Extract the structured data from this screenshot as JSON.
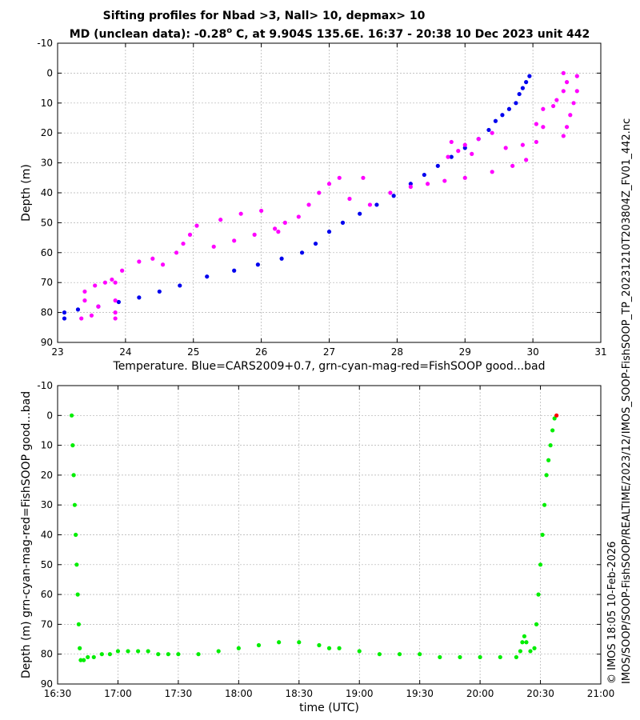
{
  "title_line1": "Sifting profiles for Nbad >3, Nall> 10, depmax> 10",
  "title_line2_prefix": "MD (unclean data): -0.28",
  "title_line2_degree": "o",
  "title_line2_suffix": " C, at 9.904S 135.6E. 16:37 - 20:38 10 Dec 2023 unit 442",
  "right_label_top": "IMOS_SOOP-FishSOOP_TP_20231210T203804Z_FV01_442.nc",
  "right_label_bottom_1": "© IMOS 18:05 10-Feb-2026",
  "right_label_bottom_2": "IMOS/SOOP/SOOP-FishSOOP/REALTIME/2023/12/",
  "colors": {
    "cars": "#0000ee",
    "mag": "#ff00ff",
    "green": "#00ee00",
    "red": "#ff0000"
  },
  "chart_data": [
    {
      "type": "scatter",
      "xlabel": "Temperature. Blue=CARS2009+0.7, grn-cyan-mag-red=FishSOOP good...bad",
      "ylabel": "Depth (m)",
      "xlim": [
        23,
        31
      ],
      "ylim": [
        -10,
        90
      ],
      "y_reversed": true,
      "grid": true,
      "xticks": [
        "23",
        "24",
        "25",
        "26",
        "27",
        "28",
        "29",
        "30",
        "31"
      ],
      "yticks": [
        "-10",
        "0",
        "10",
        "20",
        "30",
        "40",
        "50",
        "60",
        "70",
        "80",
        "90"
      ],
      "series": [
        {
          "color": "blue",
          "points": [
            [
              29.95,
              1
            ],
            [
              29.9,
              3
            ],
            [
              29.85,
              5
            ],
            [
              29.8,
              7
            ],
            [
              29.75,
              10
            ],
            [
              29.65,
              12
            ],
            [
              29.55,
              14
            ],
            [
              29.45,
              16
            ],
            [
              29.35,
              19
            ],
            [
              29.2,
              22
            ],
            [
              29.0,
              25
            ],
            [
              28.8,
              28
            ],
            [
              28.6,
              31
            ],
            [
              28.4,
              34
            ],
            [
              28.2,
              37
            ],
            [
              27.95,
              41
            ],
            [
              27.7,
              44
            ],
            [
              27.45,
              47
            ],
            [
              27.2,
              50
            ],
            [
              27.0,
              53
            ],
            [
              26.8,
              57
            ],
            [
              26.6,
              60
            ],
            [
              26.3,
              62
            ],
            [
              25.95,
              64
            ],
            [
              25.6,
              66
            ],
            [
              25.2,
              68
            ],
            [
              24.8,
              71
            ],
            [
              24.5,
              73
            ],
            [
              24.2,
              75
            ],
            [
              23.9,
              76.5
            ],
            [
              23.6,
              78
            ],
            [
              23.3,
              79
            ],
            [
              23.1,
              80
            ],
            [
              23.1,
              82
            ]
          ]
        },
        {
          "color": "magenta",
          "points": [
            [
              30.45,
              0
            ],
            [
              30.5,
              3
            ],
            [
              30.45,
              6
            ],
            [
              30.35,
              9
            ],
            [
              30.3,
              11
            ],
            [
              30.15,
              12
            ],
            [
              30.05,
              17
            ],
            [
              30.15,
              18
            ],
            [
              30.05,
              23
            ],
            [
              30.45,
              21
            ],
            [
              30.5,
              18
            ],
            [
              30.55,
              14
            ],
            [
              30.6,
              10
            ],
            [
              30.65,
              6
            ],
            [
              30.65,
              1
            ],
            [
              29.85,
              24
            ],
            [
              29.6,
              25
            ],
            [
              29.4,
              20
            ],
            [
              29.2,
              22
            ],
            [
              29.0,
              24
            ],
            [
              28.8,
              23
            ],
            [
              28.9,
              26
            ],
            [
              28.75,
              28
            ],
            [
              29.1,
              27
            ],
            [
              29.9,
              29
            ],
            [
              29.7,
              31
            ],
            [
              29.4,
              33
            ],
            [
              29.0,
              35
            ],
            [
              28.7,
              36
            ],
            [
              28.45,
              37
            ],
            [
              28.2,
              38
            ],
            [
              27.9,
              40
            ],
            [
              27.5,
              35
            ],
            [
              27.15,
              35
            ],
            [
              27.0,
              37
            ],
            [
              26.85,
              40
            ],
            [
              26.7,
              44
            ],
            [
              26.55,
              48
            ],
            [
              26.35,
              50
            ],
            [
              26.25,
              53
            ],
            [
              26.0,
              46
            ],
            [
              25.7,
              47
            ],
            [
              25.4,
              49
            ],
            [
              25.05,
              51
            ],
            [
              24.95,
              54
            ],
            [
              24.85,
              57
            ],
            [
              24.75,
              60
            ],
            [
              24.55,
              64
            ],
            [
              24.4,
              62
            ],
            [
              24.2,
              63
            ],
            [
              23.95,
              66
            ],
            [
              23.85,
              70
            ],
            [
              23.85,
              76
            ],
            [
              23.85,
              80
            ],
            [
              23.85,
              82
            ],
            [
              23.6,
              78
            ],
            [
              23.5,
              81
            ],
            [
              23.35,
              82
            ],
            [
              23.4,
              76
            ],
            [
              23.4,
              73
            ],
            [
              23.55,
              71
            ],
            [
              23.7,
              70
            ],
            [
              23.8,
              69
            ],
            [
              25.3,
              58
            ],
            [
              25.6,
              56
            ],
            [
              25.9,
              54
            ],
            [
              26.2,
              52
            ],
            [
              27.3,
              42
            ],
            [
              27.6,
              44
            ]
          ]
        }
      ]
    },
    {
      "type": "scatter",
      "xlabel": "time (UTC)",
      "ylabel": "Depth (m) grn-cyan-mag-red=FishSOOP good...bad",
      "xlim": [
        "16:30",
        "21:00"
      ],
      "ylim": [
        -10,
        90
      ],
      "y_reversed": true,
      "grid": true,
      "xticks": [
        "16:30",
        "17:00",
        "17:30",
        "18:00",
        "18:30",
        "19:00",
        "19:30",
        "20:00",
        "20:30",
        "21:00"
      ],
      "yticks": [
        "-10",
        "0",
        "10",
        "20",
        "30",
        "40",
        "50",
        "60",
        "70",
        "80",
        "90"
      ],
      "series": [
        {
          "color": "green",
          "points": [
            [
              "16:37",
              0
            ],
            [
              "16:37.5",
              10
            ],
            [
              "16:38",
              20
            ],
            [
              "16:38.5",
              30
            ],
            [
              "16:39",
              40
            ],
            [
              "16:39.5",
              50
            ],
            [
              "16:40",
              60
            ],
            [
              "16:40.5",
              70
            ],
            [
              "16:41",
              78
            ],
            [
              "16:41.5",
              82
            ],
            [
              "16:43",
              82
            ],
            [
              "16:45",
              81
            ],
            [
              "16:48",
              81
            ],
            [
              "16:52",
              80
            ],
            [
              "16:56",
              80
            ],
            [
              "17:00",
              79
            ],
            [
              "17:05",
              79
            ],
            [
              "17:10",
              79
            ],
            [
              "17:15",
              79
            ],
            [
              "17:20",
              80
            ],
            [
              "17:25",
              80
            ],
            [
              "17:30",
              80
            ],
            [
              "17:40",
              80
            ],
            [
              "17:50",
              79
            ],
            [
              "18:00",
              78
            ],
            [
              "18:10",
              77
            ],
            [
              "18:20",
              76
            ],
            [
              "18:30",
              76
            ],
            [
              "18:40",
              77
            ],
            [
              "18:45",
              78
            ],
            [
              "18:50",
              78
            ],
            [
              "19:00",
              79
            ],
            [
              "19:10",
              80
            ],
            [
              "19:20",
              80
            ],
            [
              "19:30",
              80
            ],
            [
              "19:40",
              81
            ],
            [
              "19:50",
              81
            ],
            [
              "20:00",
              81
            ],
            [
              "20:10",
              81
            ],
            [
              "20:18",
              81
            ],
            [
              "20:20",
              79
            ],
            [
              "20:21",
              76
            ],
            [
              "20:22",
              74
            ],
            [
              "20:23",
              76
            ],
            [
              "20:25",
              79
            ],
            [
              "20:27",
              78
            ],
            [
              "20:28",
              70
            ],
            [
              "20:29",
              60
            ],
            [
              "20:30",
              50
            ],
            [
              "20:31",
              40
            ],
            [
              "20:32",
              30
            ],
            [
              "20:33",
              20
            ],
            [
              "20:34",
              15
            ],
            [
              "20:35",
              10
            ],
            [
              "20:36",
              5
            ],
            [
              "20:37",
              1
            ]
          ]
        },
        {
          "color": "red",
          "points": [
            [
              "20:38",
              0
            ]
          ]
        }
      ]
    }
  ]
}
